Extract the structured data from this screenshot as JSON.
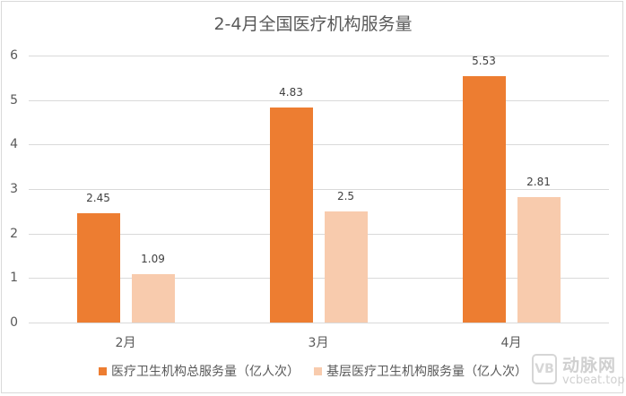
{
  "title": "2-4月全国医疗机构服务量",
  "colors": {
    "series1": "#ed7d31",
    "series2": "#f8cbad",
    "grid": "#d9d9d9",
    "text": "#595959"
  },
  "yaxis": {
    "ticks": [
      "0",
      "1",
      "2",
      "3",
      "4",
      "5",
      "6"
    ]
  },
  "xaxis": {
    "ticks": [
      "2月",
      "3月",
      "4月"
    ]
  },
  "legend": {
    "items": [
      {
        "label": "医疗卫生机构总服务量（亿人次）"
      },
      {
        "label": "基层医疗卫生机构服务量（亿人次）"
      }
    ]
  },
  "labels": {
    "s1": [
      "2.45",
      "4.83",
      "5.53"
    ],
    "s2": [
      "1.09",
      "2.5",
      "2.81"
    ]
  },
  "watermark": {
    "logo": "VB",
    "name": "动脉网",
    "url": "vcbeat.top"
  },
  "chart_data": {
    "type": "bar",
    "title": "2-4月全国医疗机构服务量",
    "categories": [
      "2月",
      "3月",
      "4月"
    ],
    "series": [
      {
        "name": "医疗卫生机构总服务量（亿人次）",
        "values": [
          2.45,
          4.83,
          5.53
        ],
        "color": "#ed7d31"
      },
      {
        "name": "基层医疗卫生机构服务量（亿人次）",
        "values": [
          1.09,
          2.5,
          2.81
        ],
        "color": "#f8cbad"
      }
    ],
    "xlabel": "",
    "ylabel": "",
    "ylim": [
      0,
      6
    ],
    "yticks": [
      0,
      1,
      2,
      3,
      4,
      5,
      6
    ],
    "grid": true,
    "legend_position": "bottom",
    "data_labels": true
  }
}
